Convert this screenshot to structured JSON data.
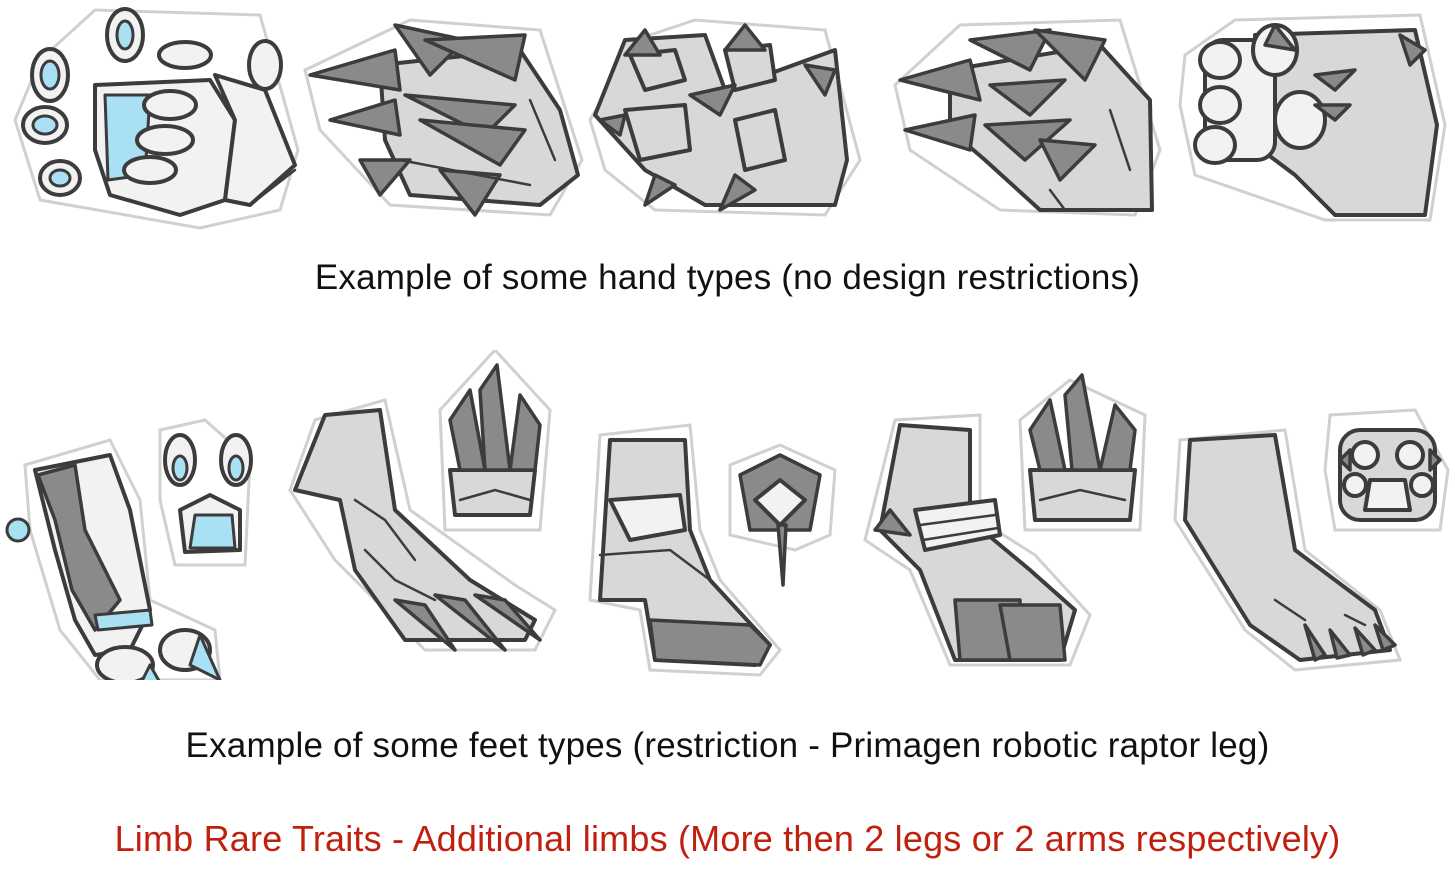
{
  "captions": {
    "hands": "Example of some hand types (no design restrictions)",
    "feet": "Example of some feet types (restriction - Primagen robotic raptor leg)",
    "rare": "Limb Rare Traits - Additional limbs (More then 2 legs or 2 arms respectively)"
  },
  "colors": {
    "caption_text": "#111111",
    "rare_text": "#c0200e",
    "outline": "#3c3c3c",
    "light_fill": "#d8d8d8",
    "dark_fill": "#8a8a8a",
    "accent_blue": "#a9e0f4"
  },
  "illustrations": {
    "hands": [
      "robotic-hand",
      "spiked-claw-hand",
      "clawed-paw-hand",
      "scaled-claw-hand",
      "padded-paw-hand"
    ],
    "feet": [
      "robotic-raptor-foot",
      "raptor-talon-foot",
      "hoof-foot",
      "clawed-cuffed-foot",
      "padded-paw-foot"
    ]
  }
}
